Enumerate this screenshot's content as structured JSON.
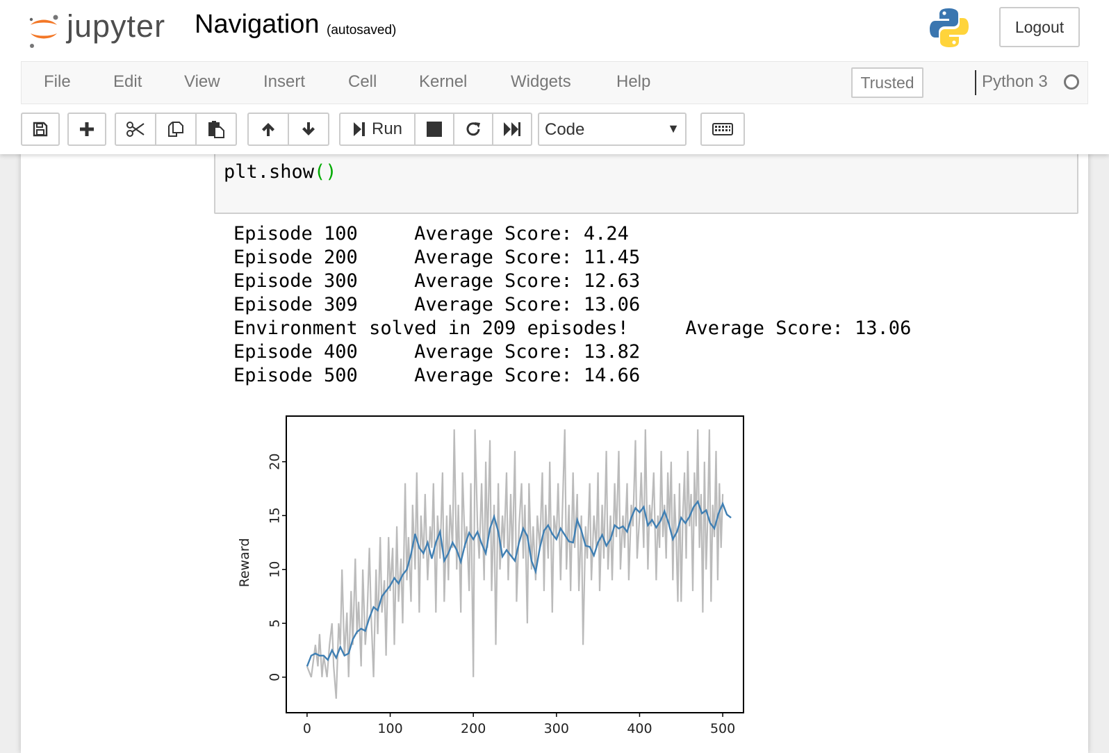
{
  "header": {
    "logo_text": "jupyter",
    "notebook_name": "Navigation",
    "checkpoint_status": "(autosaved)",
    "logout_label": "Logout"
  },
  "menu": {
    "items": [
      "File",
      "Edit",
      "View",
      "Insert",
      "Cell",
      "Kernel",
      "Widgets",
      "Help"
    ],
    "trusted_label": "Trusted",
    "kernel_name": "Python 3"
  },
  "toolbar": {
    "run_label": "Run",
    "cell_type": "Code",
    "icons": [
      "save-icon",
      "plus-icon",
      "scissors-icon",
      "copy-icon",
      "paste-icon",
      "arrow-up-icon",
      "arrow-down-icon",
      "run-icon",
      "stop-icon",
      "restart-icon",
      "fast-forward-icon",
      "keyboard-icon"
    ]
  },
  "cell": {
    "code_prefix": "plt.show",
    "code_parens": "()"
  },
  "output": {
    "lines": [
      "Episode 100\tAverage Score: 4.24",
      "Episode 200\tAverage Score: 11.45",
      "Episode 300\tAverage Score: 12.63",
      "Episode 309\tAverage Score: 13.06",
      "Environment solved in 209 episodes!\tAverage Score: 13.06",
      "Episode 400\tAverage Score: 13.82",
      "Episode 500\tAverage Score: 14.66"
    ]
  },
  "colors": {
    "raw_series": "#bbbbbb",
    "avg_series": "#3f7fb3",
    "kernel_idle": "#777777"
  },
  "chart_data": {
    "type": "line",
    "title": "",
    "xlabel": "",
    "ylabel": "Reward",
    "xlim": [
      -25,
      525
    ],
    "ylim": [
      -3.3,
      24.3
    ],
    "xticks": [
      0,
      100,
      200,
      300,
      400,
      500
    ],
    "yticks": [
      0,
      5,
      10,
      15,
      20
    ],
    "series": [
      {
        "name": "",
        "color": "#bbbbbb",
        "points": [
          [
            0,
            1
          ],
          [
            5,
            0
          ],
          [
            10,
            3
          ],
          [
            13,
            1
          ],
          [
            15,
            4
          ],
          [
            18,
            0
          ],
          [
            20,
            2
          ],
          [
            24,
            0
          ],
          [
            27,
            3
          ],
          [
            30,
            5
          ],
          [
            32,
            1
          ],
          [
            35,
            -2
          ],
          [
            38,
            5
          ],
          [
            40,
            3
          ],
          [
            42,
            10
          ],
          [
            45,
            2
          ],
          [
            48,
            6
          ],
          [
            50,
            0
          ],
          [
            53,
            8
          ],
          [
            55,
            3
          ],
          [
            58,
            11
          ],
          [
            60,
            4
          ],
          [
            62,
            7
          ],
          [
            65,
            1
          ],
          [
            67,
            10
          ],
          [
            70,
            3
          ],
          [
            72,
            5
          ],
          [
            75,
            12
          ],
          [
            77,
            6
          ],
          [
            80,
            0
          ],
          [
            83,
            10
          ],
          [
            85,
            4
          ],
          [
            88,
            13
          ],
          [
            90,
            6
          ],
          [
            93,
            9
          ],
          [
            95,
            2
          ],
          [
            98,
            13
          ],
          [
            100,
            8
          ],
          [
            103,
            12
          ],
          [
            105,
            3
          ],
          [
            108,
            14
          ],
          [
            110,
            7
          ],
          [
            113,
            11
          ],
          [
            115,
            5
          ],
          [
            118,
            18
          ],
          [
            120,
            9
          ],
          [
            122,
            13
          ],
          [
            125,
            7
          ],
          [
            127,
            16
          ],
          [
            130,
            10
          ],
          [
            132,
            19
          ],
          [
            135,
            6
          ],
          [
            137,
            15
          ],
          [
            140,
            11
          ],
          [
            142,
            17
          ],
          [
            145,
            9
          ],
          [
            148,
            14
          ],
          [
            150,
            12
          ],
          [
            152,
            18
          ],
          [
            155,
            6
          ],
          [
            157,
            15
          ],
          [
            160,
            11
          ],
          [
            163,
            19
          ],
          [
            165,
            7
          ],
          [
            168,
            15
          ],
          [
            170,
            9
          ],
          [
            172,
            16
          ],
          [
            175,
            12
          ],
          [
            177,
            23
          ],
          [
            180,
            10
          ],
          [
            182,
            16
          ],
          [
            185,
            6
          ],
          [
            187,
            19
          ],
          [
            190,
            12
          ],
          [
            192,
            14
          ],
          [
            195,
            8
          ],
          [
            197,
            18
          ],
          [
            200,
            0
          ],
          [
            202,
            23
          ],
          [
            205,
            14
          ],
          [
            207,
            11
          ],
          [
            210,
            18
          ],
          [
            213,
            9
          ],
          [
            215,
            20
          ],
          [
            217,
            12
          ],
          [
            220,
            22
          ],
          [
            222,
            8
          ],
          [
            225,
            16
          ],
          [
            227,
            3
          ],
          [
            230,
            18
          ],
          [
            232,
            10
          ],
          [
            235,
            15
          ],
          [
            237,
            12
          ],
          [
            240,
            19
          ],
          [
            242,
            9
          ],
          [
            245,
            17
          ],
          [
            247,
            11
          ],
          [
            250,
            21
          ],
          [
            252,
            7
          ],
          [
            255,
            14
          ],
          [
            258,
            18
          ],
          [
            260,
            11
          ],
          [
            262,
            16
          ],
          [
            265,
            5
          ],
          [
            267,
            18
          ],
          [
            270,
            10
          ],
          [
            272,
            14
          ],
          [
            275,
            9
          ],
          [
            277,
            15
          ],
          [
            280,
            12
          ],
          [
            283,
            19
          ],
          [
            285,
            8
          ],
          [
            287,
            16
          ],
          [
            290,
            11
          ],
          [
            292,
            20
          ],
          [
            295,
            6
          ],
          [
            297,
            15
          ],
          [
            300,
            13
          ],
          [
            302,
            18
          ],
          [
            305,
            9
          ],
          [
            307,
            15
          ],
          [
            310,
            23
          ],
          [
            312,
            10
          ],
          [
            315,
            16
          ],
          [
            317,
            8
          ],
          [
            320,
            19
          ],
          [
            322,
            12
          ],
          [
            325,
            17
          ],
          [
            327,
            8
          ],
          [
            330,
            15
          ],
          [
            332,
            3
          ],
          [
            335,
            14
          ],
          [
            337,
            11
          ],
          [
            340,
            18
          ],
          [
            342,
            9
          ],
          [
            345,
            15
          ],
          [
            348,
            12
          ],
          [
            350,
            19
          ],
          [
            352,
            8
          ],
          [
            355,
            16
          ],
          [
            357,
            11
          ],
          [
            360,
            21
          ],
          [
            362,
            10
          ],
          [
            365,
            15
          ],
          [
            367,
            9
          ],
          [
            370,
            18
          ],
          [
            372,
            13
          ],
          [
            375,
            21
          ],
          [
            377,
            10
          ],
          [
            380,
            15
          ],
          [
            382,
            12
          ],
          [
            385,
            18
          ],
          [
            387,
            9
          ],
          [
            390,
            16
          ],
          [
            392,
            14
          ],
          [
            395,
            22
          ],
          [
            397,
            11
          ],
          [
            400,
            15
          ],
          [
            402,
            19
          ],
          [
            405,
            12
          ],
          [
            407,
            23
          ],
          [
            410,
            10
          ],
          [
            412,
            16
          ],
          [
            414,
            14
          ],
          [
            417,
            19
          ],
          [
            420,
            9
          ],
          [
            422,
            15
          ],
          [
            424,
            12
          ],
          [
            426,
            21
          ],
          [
            428,
            13
          ],
          [
            430,
            16
          ],
          [
            432,
            11
          ],
          [
            434,
            19
          ],
          [
            436,
            14
          ],
          [
            438,
            20
          ],
          [
            440,
            9
          ],
          [
            442,
            17
          ],
          [
            444,
            13
          ],
          [
            446,
            7
          ],
          [
            448,
            18
          ],
          [
            450,
            7
          ],
          [
            452,
            15
          ],
          [
            454,
            19
          ],
          [
            456,
            11
          ],
          [
            458,
            21
          ],
          [
            460,
            14
          ],
          [
            462,
            17
          ],
          [
            464,
            8
          ],
          [
            466,
            19
          ],
          [
            468,
            14
          ],
          [
            470,
            23
          ],
          [
            472,
            12
          ],
          [
            474,
            17
          ],
          [
            476,
            6
          ],
          [
            478,
            20
          ],
          [
            480,
            10
          ],
          [
            482,
            15
          ],
          [
            484,
            23
          ],
          [
            486,
            7
          ],
          [
            488,
            16
          ],
          [
            490,
            13
          ],
          [
            492,
            21
          ],
          [
            494,
            9
          ],
          [
            496,
            18
          ],
          [
            498,
            12
          ],
          [
            500,
            17
          ]
        ]
      },
      {
        "name": "",
        "color": "#3f7fb3",
        "points": [
          [
            0,
            1
          ],
          [
            5,
            2
          ],
          [
            10,
            2.2
          ],
          [
            15,
            2
          ],
          [
            20,
            2
          ],
          [
            25,
            1.6
          ],
          [
            30,
            2.5
          ],
          [
            35,
            1.8
          ],
          [
            40,
            2.8
          ],
          [
            45,
            2
          ],
          [
            50,
            2.2
          ],
          [
            55,
            3.5
          ],
          [
            60,
            4.2
          ],
          [
            65,
            4.5
          ],
          [
            70,
            4.3
          ],
          [
            75,
            5.5
          ],
          [
            80,
            6.5
          ],
          [
            85,
            6.2
          ],
          [
            90,
            7.5
          ],
          [
            95,
            8
          ],
          [
            100,
            8.5
          ],
          [
            105,
            9.2
          ],
          [
            110,
            8.7
          ],
          [
            115,
            9.5
          ],
          [
            120,
            10
          ],
          [
            125,
            11.4
          ],
          [
            130,
            13.3
          ],
          [
            135,
            12
          ],
          [
            140,
            11.5
          ],
          [
            145,
            12.5
          ],
          [
            150,
            11
          ],
          [
            155,
            12.5
          ],
          [
            160,
            13.5
          ],
          [
            165,
            10.8
          ],
          [
            170,
            11.5
          ],
          [
            175,
            12.5
          ],
          [
            180,
            11.8
          ],
          [
            185,
            10.7
          ],
          [
            190,
            12.3
          ],
          [
            195,
            13.4
          ],
          [
            200,
            12.8
          ],
          [
            205,
            13.5
          ],
          [
            210,
            12.4
          ],
          [
            215,
            11.5
          ],
          [
            220,
            13.8
          ],
          [
            225,
            14.9
          ],
          [
            230,
            13.5
          ],
          [
            235,
            11.2
          ],
          [
            240,
            11.8
          ],
          [
            245,
            11.3
          ],
          [
            250,
            10.8
          ],
          [
            255,
            12.5
          ],
          [
            260,
            13.8
          ],
          [
            265,
            13.1
          ],
          [
            270,
            10.8
          ],
          [
            275,
            9.8
          ],
          [
            280,
            12
          ],
          [
            285,
            13.6
          ],
          [
            290,
            14.1
          ],
          [
            295,
            13.3
          ],
          [
            300,
            12.8
          ],
          [
            305,
            13.8
          ],
          [
            310,
            13.2
          ],
          [
            315,
            12.6
          ],
          [
            320,
            12.5
          ],
          [
            325,
            14.6
          ],
          [
            330,
            13.6
          ],
          [
            335,
            12.2
          ],
          [
            340,
            12.1
          ],
          [
            345,
            11.3
          ],
          [
            350,
            12.5
          ],
          [
            355,
            13.2
          ],
          [
            360,
            12.2
          ],
          [
            365,
            12.8
          ],
          [
            370,
            14.1
          ],
          [
            375,
            13.8
          ],
          [
            380,
            14
          ],
          [
            385,
            13.5
          ],
          [
            390,
            14.8
          ],
          [
            395,
            15.7
          ],
          [
            400,
            15.3
          ],
          [
            405,
            15.8
          ],
          [
            410,
            14.1
          ],
          [
            415,
            14.6
          ],
          [
            420,
            13.9
          ],
          [
            425,
            14.5
          ],
          [
            430,
            15.4
          ],
          [
            435,
            14.3
          ],
          [
            440,
            12.8
          ],
          [
            445,
            13.5
          ],
          [
            450,
            14.8
          ],
          [
            455,
            14.3
          ],
          [
            460,
            14.9
          ],
          [
            465,
            15.8
          ],
          [
            470,
            16.3
          ],
          [
            475,
            15.2
          ],
          [
            480,
            15.5
          ],
          [
            485,
            14.3
          ],
          [
            490,
            13.8
          ],
          [
            495,
            15.2
          ],
          [
            500,
            16.1
          ],
          [
            505,
            15.1
          ],
          [
            510,
            14.8
          ]
        ]
      }
    ]
  }
}
